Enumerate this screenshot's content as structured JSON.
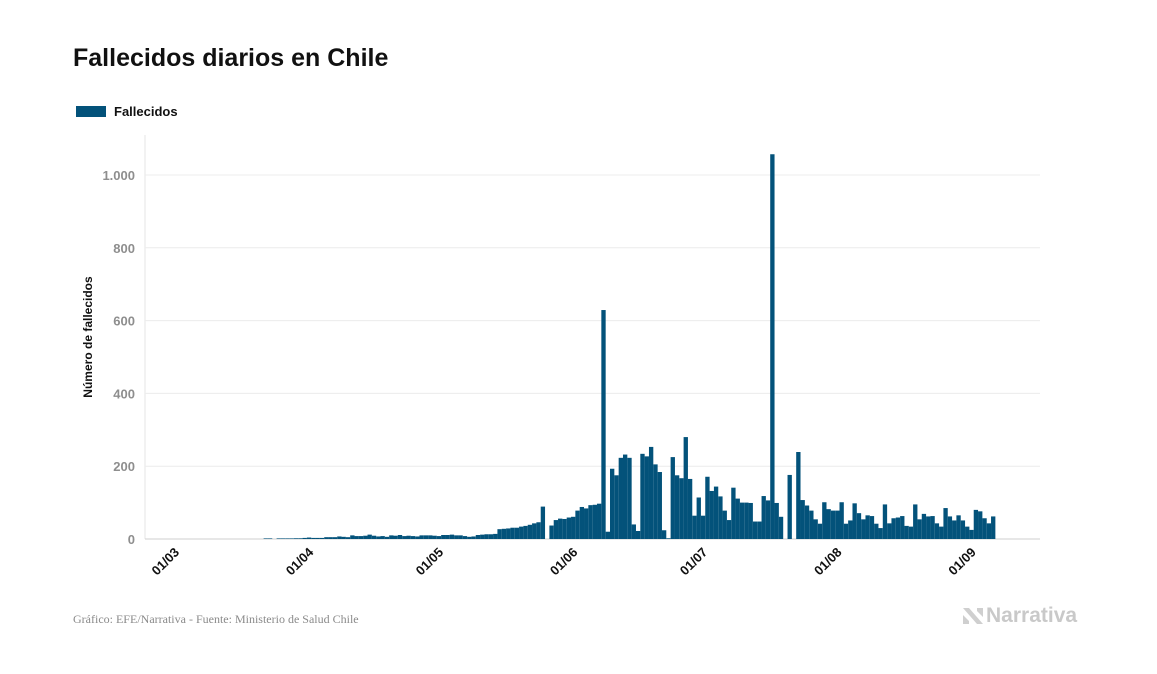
{
  "title": "Fallecidos diarios en Chile",
  "legend": {
    "label": "Fallecidos",
    "color": "#03527a"
  },
  "source": "Gráfico: EFE/Narrativa - Fuente: Ministerio de Salud Chile",
  "logo": "Narrativa",
  "chart_data": {
    "type": "bar",
    "title": "Fallecidos diarios en Chile",
    "xlabel": "",
    "ylabel": "Número de fallecidos",
    "ylim": [
      0,
      1000
    ],
    "grid": true,
    "legend_position": "top-left",
    "y_ticks": [
      {
        "value": 0,
        "label": "0"
      },
      {
        "value": 200,
        "label": "200"
      },
      {
        "value": 400,
        "label": "400"
      },
      {
        "value": 600,
        "label": "600"
      },
      {
        "value": 800,
        "label": "800"
      },
      {
        "value": 1000,
        "label": "1.000"
      }
    ],
    "x_ticks": [
      {
        "month": "03",
        "label": "01/03"
      },
      {
        "month": "04",
        "label": "01/04"
      },
      {
        "month": "05",
        "label": "01/05"
      },
      {
        "month": "06",
        "label": "01/06"
      },
      {
        "month": "07",
        "label": "01/07"
      },
      {
        "month": "08",
        "label": "01/08"
      },
      {
        "month": "09",
        "label": "01/09"
      }
    ],
    "series": [
      {
        "name": "Fallecidos",
        "color": "#03527a",
        "daily": [
          {
            "month": "03",
            "start_day": 3,
            "values": [
              0,
              0,
              0,
              0,
              0,
              0,
              0,
              0,
              0,
              0,
              0,
              0,
              0,
              0,
              0,
              0,
              0,
              0,
              1,
              1,
              0,
              1,
              1,
              1,
              1,
              2,
              2,
              3,
              4
            ]
          },
          {
            "month": "04",
            "start_day": 1,
            "values": [
              3,
              3,
              3,
              5,
              5,
              5,
              7,
              6,
              5,
              10,
              8,
              8,
              9,
              12,
              9,
              7,
              8,
              6,
              10,
              9,
              11,
              8,
              9,
              8,
              7,
              10,
              10,
              10,
              9,
              8
            ]
          },
          {
            "month": "05",
            "start_day": 1,
            "values": [
              11,
              11,
              12,
              10,
              10,
              8,
              6,
              7,
              11,
              12,
              13,
              13,
              14,
              27,
              28,
              29,
              31,
              31,
              34,
              36,
              39,
              43,
              46,
              89,
              0,
              37,
              52,
              56,
              55,
              59,
              61
            ]
          },
          {
            "month": "06",
            "start_day": 1,
            "values": [
              78,
              88,
              84,
              93,
              94,
              97,
              629,
              20,
              193,
              175,
              223,
              232,
              223,
              40,
              22,
              234,
              227,
              253,
              205,
              184,
              24,
              2,
              225,
              175,
              167,
              280,
              165,
              64,
              114,
              64
            ]
          },
          {
            "month": "07",
            "start_day": 1,
            "values": [
              171,
              132,
              144,
              117,
              78,
              52,
              141,
              111,
              100,
              100,
              99,
              48,
              48,
              118,
              106,
              1057,
              99,
              61,
              0,
              176,
              0,
              239,
              107,
              92,
              78,
              54,
              42,
              101,
              82,
              78,
              78
            ]
          },
          {
            "month": "08",
            "start_day": 1,
            "values": [
              101,
              42,
              51,
              98,
              71,
              54,
              65,
              63,
              42,
              30,
              95,
              43,
              57,
              59,
              63,
              36,
              34,
              95,
              54,
              69,
              62,
              63,
              43,
              34,
              85,
              62,
              51,
              65,
              51,
              34,
              25
            ]
          },
          {
            "month": "09",
            "start_day": 1,
            "values": [
              80,
              76,
              57,
              43,
              62
            ]
          }
        ]
      }
    ]
  }
}
